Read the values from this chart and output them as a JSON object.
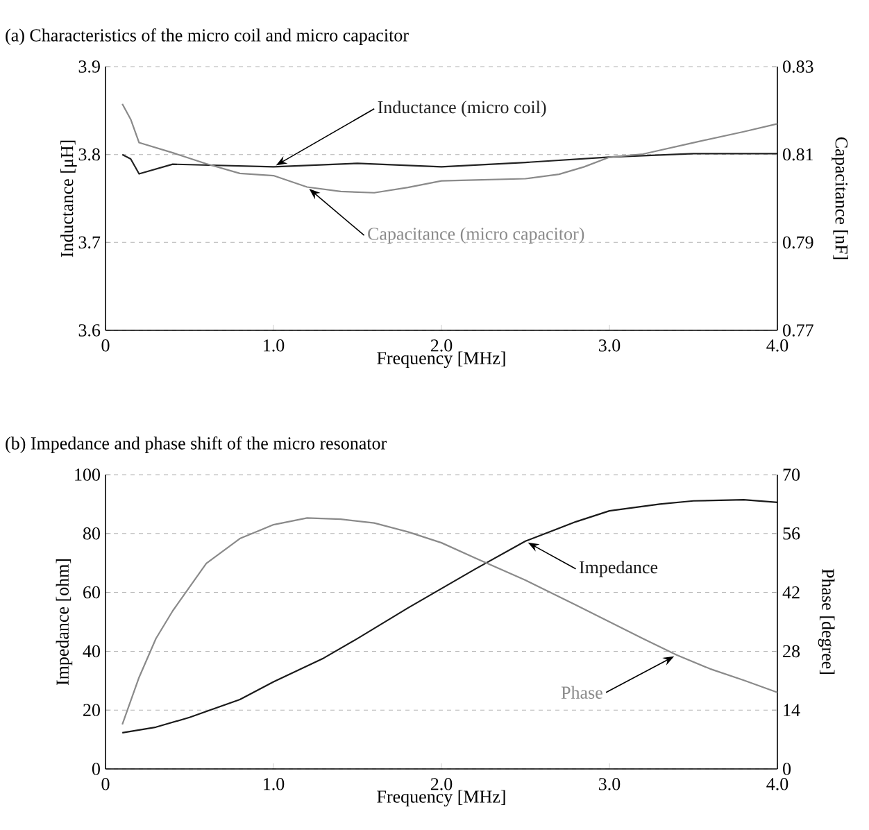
{
  "chart_data": [
    {
      "type": "line",
      "title": "(a) Characteristics of the micro coil and micro capacitor",
      "xlabel": "Frequency [MHz]",
      "ylabel": "Inductance [μH]",
      "y2label": "Capacitance [nF]",
      "xlim": [
        0,
        4
      ],
      "xticks": [
        0,
        {
          "value": 1,
          "label": "1.0"
        },
        {
          "value": 2,
          "label": "2.0"
        },
        {
          "value": 3,
          "label": "3.0"
        },
        {
          "value": 4,
          "label": "4.0"
        }
      ],
      "ylim": [
        3.6,
        3.9
      ],
      "yticks": [
        3.6,
        3.7,
        3.8,
        3.9
      ],
      "y2lim": [
        0.77,
        0.83
      ],
      "y2ticks": [
        0.77,
        0.79,
        0.81,
        0.83
      ],
      "grid": "y",
      "series": [
        {
          "name": "Inductance (micro coil)",
          "color": "#222222",
          "x": [
            0.1,
            0.15,
            0.2,
            0.4,
            1.0,
            1.5,
            2.0,
            2.5,
            3.0,
            3.5,
            4.0
          ],
          "values": [
            3.8,
            3.795,
            3.778,
            3.789,
            3.786,
            3.79,
            3.786,
            3.791,
            3.797,
            3.801,
            3.801
          ]
        },
        {
          "name": "Capacitance (micro capacitor)",
          "color": "#8a8a8a",
          "axis": "y2",
          "x": [
            0.1,
            0.15,
            0.2,
            0.4,
            0.6,
            0.8,
            1.0,
            1.2,
            1.4,
            1.6,
            1.8,
            2.0,
            2.2,
            2.5,
            2.7,
            2.85,
            3.0,
            3.2,
            3.5,
            3.8,
            4.0
          ],
          "values": [
            0.8215,
            0.818,
            0.8127,
            0.8104,
            0.8079,
            0.8057,
            0.8052,
            0.8026,
            0.8016,
            0.8013,
            0.8025,
            0.804,
            0.8042,
            0.8045,
            0.8055,
            0.8072,
            0.8094,
            0.8101,
            0.8127,
            0.8152,
            0.817
          ]
        }
      ]
    },
    {
      "type": "line",
      "title": "(b) Impedance and phase shift of the micro resonator",
      "xlabel": "Frequency [MHz]",
      "ylabel": "Impedance [ohm]",
      "y2label": "Phase [degree]",
      "xlim": [
        0,
        4
      ],
      "xticks": [
        0,
        {
          "value": 1,
          "label": "1.0"
        },
        {
          "value": 2,
          "label": "2.0"
        },
        {
          "value": 3,
          "label": "3.0"
        },
        {
          "value": 4,
          "label": "4.0"
        }
      ],
      "ylim": [
        0,
        100
      ],
      "yticks": [
        0,
        20,
        40,
        60,
        80,
        100
      ],
      "y2lim": [
        0,
        70
      ],
      "y2ticks": [
        0,
        14,
        28,
        42,
        56,
        70
      ],
      "grid": "y",
      "series": [
        {
          "name": "Impedance",
          "color": "#1a1a1a",
          "x": [
            0.1,
            0.3,
            0.5,
            0.8,
            1.0,
            1.3,
            1.5,
            1.8,
            2.0,
            2.2,
            2.5,
            2.8,
            3.0,
            3.3,
            3.5,
            3.8,
            4.0
          ],
          "values": [
            12.3,
            14.2,
            17.5,
            23.6,
            29.6,
            37.7,
            44.3,
            54.7,
            61.3,
            67.9,
            77.4,
            84,
            87.7,
            90,
            91.1,
            91.5,
            90.6
          ]
        },
        {
          "name": "Phase",
          "color": "#8a8a8a",
          "axis": "y2",
          "x": [
            0.1,
            0.2,
            0.3,
            0.4,
            0.6,
            0.8,
            1.0,
            1.2,
            1.4,
            1.6,
            1.8,
            2.0,
            2.2,
            2.5,
            2.8,
            3.0,
            3.2,
            3.4,
            3.6,
            3.8,
            4.0
          ],
          "values": [
            10.6,
            21.8,
            31,
            37.6,
            48.9,
            54.8,
            58.1,
            59.7,
            59.4,
            58.5,
            56.4,
            53.8,
            50.2,
            44.9,
            39,
            35,
            31,
            27.1,
            23.8,
            21.1,
            18.2
          ]
        }
      ]
    }
  ]
}
